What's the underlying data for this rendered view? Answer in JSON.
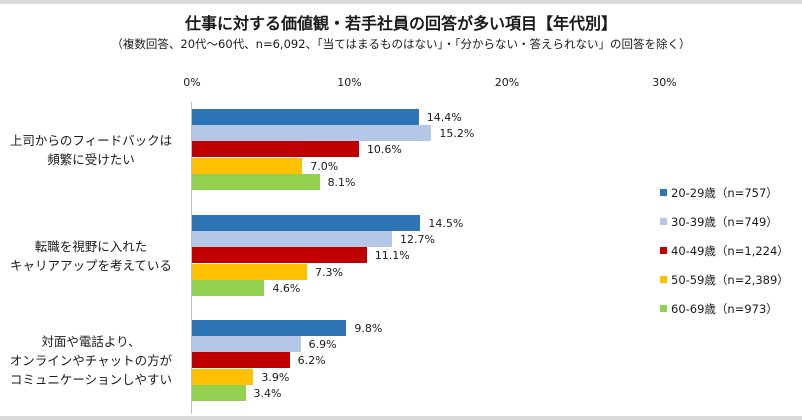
{
  "chart_data": {
    "type": "bar",
    "orientation": "horizontal",
    "title": "仕事に対する価値観・若手社員の回答が多い項目【年代別】",
    "subtitle": "（複数回答、20代～60代、n=6,092、「当てはまるものはない」・「分からない・答えられない」の回答を除く）",
    "xlabel": "",
    "ylabel": "",
    "xlim": [
      0,
      30
    ],
    "x_ticks": [
      "0%",
      "10%",
      "20%",
      "30%"
    ],
    "grid": false,
    "legend_position": "right",
    "categories": [
      "上司からのフィードバックは頻繁に受けたい",
      "転職を視野に入れたキャリアアップを考えている",
      "対面や電話より、オンラインやチャットの方がコミュニケーションしやすい"
    ],
    "category_lines": [
      [
        "上司からのフィードバックは",
        "頻繁に受けたい"
      ],
      [
        "転職を視野に入れた",
        "キャリアアップを考えている"
      ],
      [
        "対面や電話より、",
        "オンラインやチャットの方が",
        "コミュニケーションしやすい"
      ]
    ],
    "series": [
      {
        "name": "20-29歳（n=757）",
        "color": "#2e75b6",
        "values": [
          14.4,
          14.5,
          9.8
        ],
        "labels": [
          "14.4%",
          "14.5%",
          "9.8%"
        ]
      },
      {
        "name": "30-39歳（n=749）",
        "color": "#b4c7e7",
        "values": [
          15.2,
          12.7,
          6.9
        ],
        "labels": [
          "15.2%",
          "12.7%",
          "6.9%"
        ]
      },
      {
        "name": "40-49歳（n=1,224）",
        "color": "#c00000",
        "values": [
          10.6,
          11.1,
          6.2
        ],
        "labels": [
          "10.6%",
          "11.1%",
          "6.2%"
        ]
      },
      {
        "name": "50-59歳（n=2,389）",
        "color": "#ffc000",
        "values": [
          7.0,
          7.3,
          3.9
        ],
        "labels": [
          "7.0%",
          "7.3%",
          "3.9%"
        ]
      },
      {
        "name": "60-69歳（n=973）",
        "color": "#92d050",
        "values": [
          8.1,
          4.6,
          3.4
        ],
        "labels": [
          "8.1%",
          "4.6%",
          "3.4%"
        ]
      }
    ]
  }
}
